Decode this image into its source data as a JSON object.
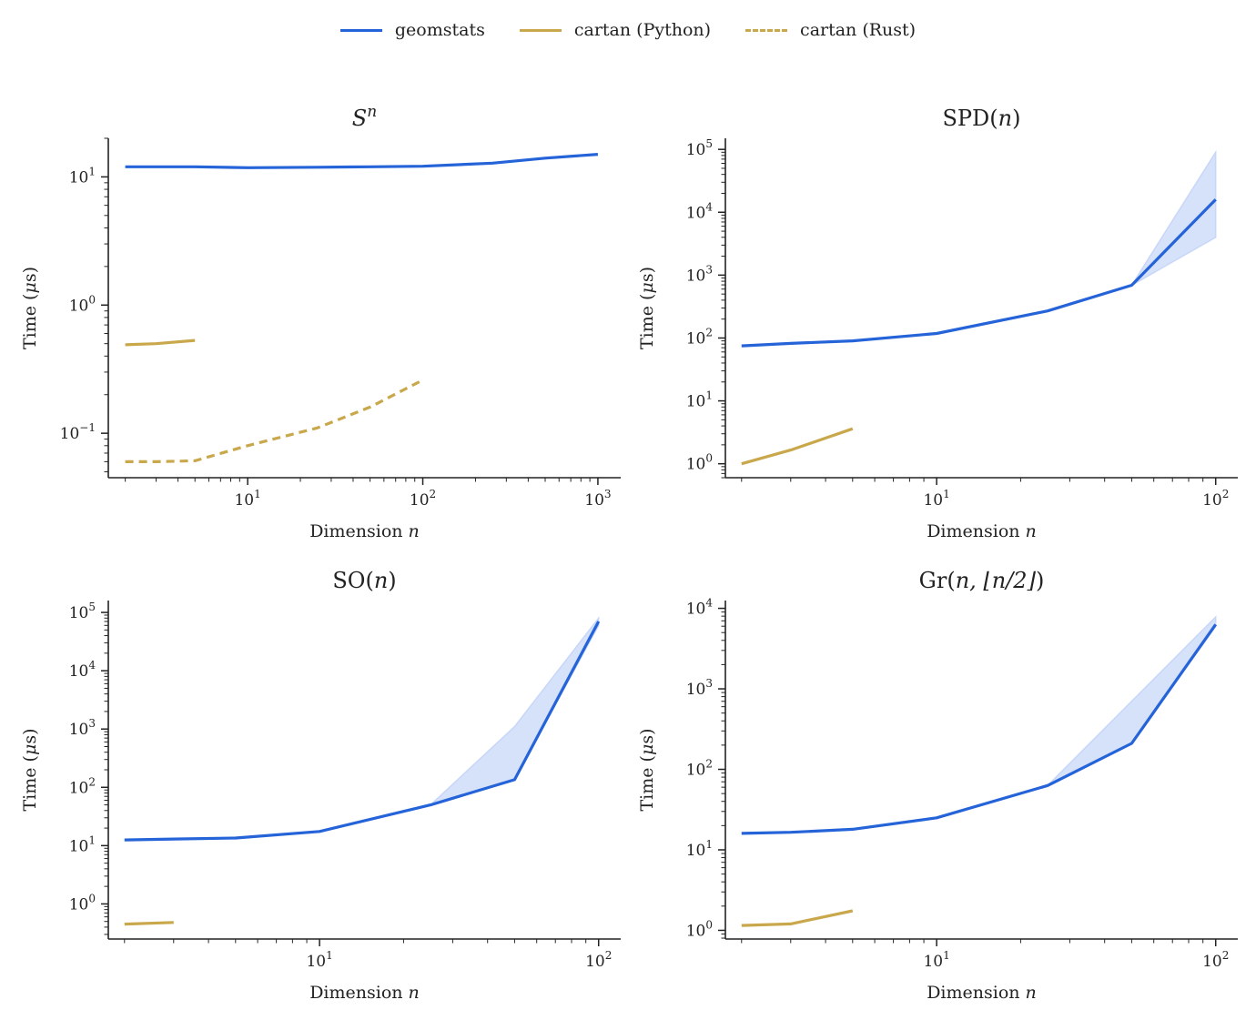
{
  "colors": {
    "geomstats": "#2563d9",
    "geomstats_band": "#c8d7f8",
    "cartan": "#c9a84c"
  },
  "legend": [
    {
      "label": "geomstats",
      "style": "solid",
      "color": "#2563d9"
    },
    {
      "label": "cartan (Python)",
      "style": "solid",
      "color": "#c9a84c"
    },
    {
      "label": "cartan (Rust)",
      "style": "dashed",
      "color": "#c9a84c"
    }
  ],
  "chart_data": [
    {
      "type": "line",
      "title_base": "S",
      "title_sup": "n",
      "xlabel": "Dimension n",
      "ylabel": "Time (μs)",
      "xscale": "log",
      "yscale": "log",
      "xlim": [
        1.6,
        1350
      ],
      "ylim": [
        0.045,
        20
      ],
      "xticks": [
        10,
        100,
        1000
      ],
      "yticks": [
        0.1,
        1,
        10
      ],
      "series": [
        {
          "name": "geomstats",
          "style": "solid",
          "x": [
            2,
            5,
            10,
            25,
            50,
            100,
            250,
            500,
            1000
          ],
          "y": [
            12,
            12,
            11.8,
            11.9,
            12,
            12.1,
            12.8,
            14,
            15
          ]
        },
        {
          "name": "cartan (Python)",
          "style": "solid",
          "x": [
            2,
            3,
            5
          ],
          "y": [
            0.49,
            0.5,
            0.53
          ]
        },
        {
          "name": "cartan (Rust)",
          "style": "dashed",
          "x": [
            2,
            3,
            5,
            10,
            25,
            50,
            100
          ],
          "y": [
            0.06,
            0.06,
            0.061,
            0.08,
            0.11,
            0.16,
            0.26
          ]
        }
      ]
    },
    {
      "type": "line",
      "title_base": "SPD(",
      "title_sup": "",
      "title_italic": "n",
      "title_end": ")",
      "xlabel": "Dimension n",
      "ylabel": "Time (μs)",
      "xscale": "log",
      "yscale": "log",
      "xlim": [
        1.75,
        120
      ],
      "ylim": [
        0.6,
        150000
      ],
      "xticks": [
        10,
        100
      ],
      "yticks": [
        1,
        10,
        100,
        1000,
        10000,
        100000
      ],
      "series": [
        {
          "name": "geomstats",
          "style": "solid",
          "x": [
            2,
            3,
            5,
            10,
            25,
            50,
            100
          ],
          "y": [
            75,
            82,
            90,
            118,
            270,
            690,
            16000
          ],
          "band_low": [
            75,
            82,
            90,
            118,
            270,
            690,
            4000
          ],
          "band_high": [
            75,
            82,
            90,
            118,
            270,
            690,
            90000
          ]
        },
        {
          "name": "cartan (Python)",
          "style": "solid",
          "x": [
            2,
            3,
            5
          ],
          "y": [
            1.0,
            1.65,
            3.6
          ]
        }
      ]
    },
    {
      "type": "line",
      "title_base": "SO(",
      "title_sup": "",
      "title_italic": "n",
      "title_end": ")",
      "xlabel": "Dimension n",
      "ylabel": "Time (μs)",
      "xscale": "log",
      "yscale": "log",
      "xlim": [
        1.75,
        120
      ],
      "ylim": [
        0.25,
        160000
      ],
      "xticks": [
        10,
        100
      ],
      "yticks": [
        1,
        10,
        100,
        1000,
        10000,
        100000
      ],
      "series": [
        {
          "name": "geomstats",
          "style": "solid",
          "x": [
            2,
            3,
            5,
            10,
            25,
            50,
            100
          ],
          "y": [
            12.5,
            13,
            13.5,
            17.5,
            50,
            135,
            70000
          ],
          "band_low": [
            12.5,
            13,
            13.5,
            17.5,
            50,
            135,
            60000
          ],
          "band_high": [
            12.5,
            13,
            13.5,
            17.5,
            50,
            1100,
            80000
          ]
        },
        {
          "name": "cartan (Python)",
          "style": "solid",
          "x": [
            2,
            3
          ],
          "y": [
            0.45,
            0.48
          ]
        }
      ]
    },
    {
      "type": "line",
      "title_base": "Gr(",
      "title_sup": "",
      "title_italic": "n, ⌊n/2⌋",
      "title_end": ")",
      "xlabel": "Dimension n",
      "ylabel": "Time (μs)",
      "xscale": "log",
      "yscale": "log",
      "xlim": [
        1.75,
        120
      ],
      "ylim": [
        0.78,
        12500
      ],
      "xticks": [
        10,
        100
      ],
      "yticks": [
        1,
        10,
        100,
        1000,
        10000
      ],
      "series": [
        {
          "name": "geomstats",
          "style": "solid",
          "x": [
            2,
            3,
            5,
            10,
            25,
            50,
            100
          ],
          "y": [
            16,
            16.5,
            18,
            25,
            63,
            210,
            6300
          ],
          "band_low": [
            16,
            16.5,
            18,
            25,
            63,
            210,
            6000
          ],
          "band_high": [
            16,
            16.5,
            18,
            25,
            63,
            700,
            7800
          ]
        },
        {
          "name": "cartan (Python)",
          "style": "solid",
          "x": [
            2,
            3,
            5
          ],
          "y": [
            1.15,
            1.2,
            1.75
          ]
        }
      ]
    }
  ]
}
